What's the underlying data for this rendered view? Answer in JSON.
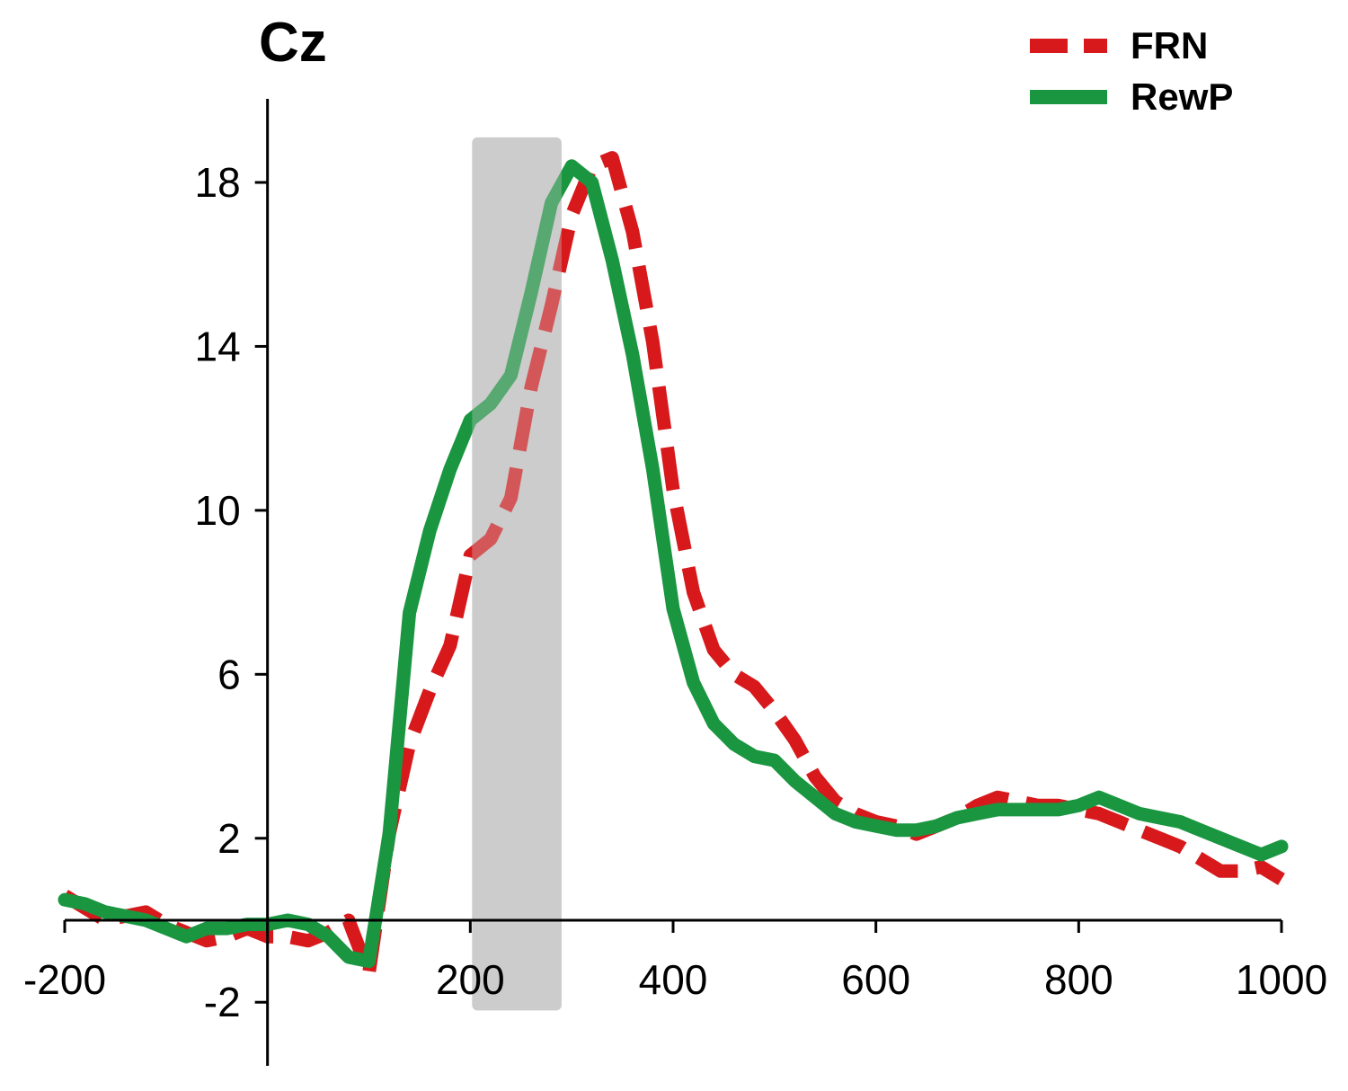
{
  "chart_data": {
    "type": "line",
    "title": "Cz",
    "xlabel": "",
    "ylabel": "",
    "xlim": [
      -200,
      1000
    ],
    "ylim": [
      -3.5,
      20
    ],
    "x_ticks": [
      -200,
      200,
      400,
      600,
      800,
      1000
    ],
    "y_ticks": [
      -2,
      2,
      6,
      10,
      14,
      18
    ],
    "grid": false,
    "legend_position": "top-right",
    "shaded_region": {
      "x_start": 200,
      "x_end": 290,
      "y_start": -2.2,
      "y_end": 19.1,
      "color": "#cccccc"
    },
    "series": [
      {
        "name": "FRN",
        "color": "#d7191c",
        "style": "dashed",
        "x": [
          -200,
          -180,
          -160,
          -140,
          -120,
          -100,
          -80,
          -60,
          -40,
          -20,
          0,
          20,
          40,
          60,
          80,
          100,
          120,
          140,
          160,
          180,
          200,
          220,
          240,
          260,
          280,
          300,
          320,
          340,
          360,
          380,
          400,
          420,
          440,
          460,
          480,
          500,
          520,
          540,
          560,
          580,
          600,
          620,
          640,
          660,
          680,
          700,
          720,
          740,
          760,
          780,
          800,
          820,
          840,
          860,
          880,
          900,
          920,
          940,
          960,
          980,
          1000
        ],
        "y": [
          0.6,
          0.3,
          0.0,
          0.1,
          0.2,
          -0.1,
          -0.3,
          -0.5,
          -0.4,
          -0.2,
          -0.4,
          -0.4,
          -0.5,
          -0.3,
          0.0,
          -1.3,
          2.1,
          4.3,
          5.6,
          6.7,
          8.9,
          9.3,
          10.3,
          13.0,
          15.0,
          17.2,
          18.4,
          18.6,
          16.8,
          14.1,
          10.5,
          8.0,
          6.6,
          6.0,
          5.7,
          5.1,
          4.4,
          3.5,
          2.9,
          2.6,
          2.4,
          2.3,
          2.1,
          2.3,
          2.5,
          2.8,
          3.0,
          2.9,
          2.8,
          2.8,
          2.7,
          2.6,
          2.4,
          2.2,
          2.0,
          1.8,
          1.5,
          1.2,
          1.2,
          1.3,
          1.0
        ]
      },
      {
        "name": "RewP",
        "color": "#1a9641",
        "style": "solid",
        "x": [
          -200,
          -180,
          -160,
          -140,
          -120,
          -100,
          -80,
          -60,
          -40,
          -20,
          0,
          20,
          40,
          60,
          80,
          100,
          120,
          140,
          160,
          180,
          200,
          220,
          240,
          260,
          280,
          300,
          320,
          340,
          360,
          380,
          400,
          420,
          440,
          460,
          480,
          500,
          520,
          540,
          560,
          580,
          600,
          620,
          640,
          660,
          680,
          700,
          720,
          740,
          760,
          780,
          800,
          820,
          840,
          860,
          880,
          900,
          920,
          940,
          960,
          980,
          1000
        ],
        "y": [
          0.5,
          0.4,
          0.2,
          0.1,
          0.0,
          -0.2,
          -0.4,
          -0.2,
          -0.2,
          -0.1,
          -0.1,
          0.0,
          -0.1,
          -0.4,
          -0.9,
          -1.0,
          2.1,
          7.5,
          9.5,
          11.0,
          12.2,
          12.6,
          13.3,
          15.3,
          17.5,
          18.4,
          18.0,
          16.1,
          13.8,
          11.0,
          7.6,
          5.8,
          4.8,
          4.3,
          4.0,
          3.9,
          3.4,
          3.0,
          2.6,
          2.4,
          2.3,
          2.2,
          2.2,
          2.3,
          2.5,
          2.6,
          2.7,
          2.7,
          2.7,
          2.7,
          2.8,
          3.0,
          2.8,
          2.6,
          2.5,
          2.4,
          2.2,
          2.0,
          1.8,
          1.6,
          1.8
        ]
      }
    ]
  }
}
